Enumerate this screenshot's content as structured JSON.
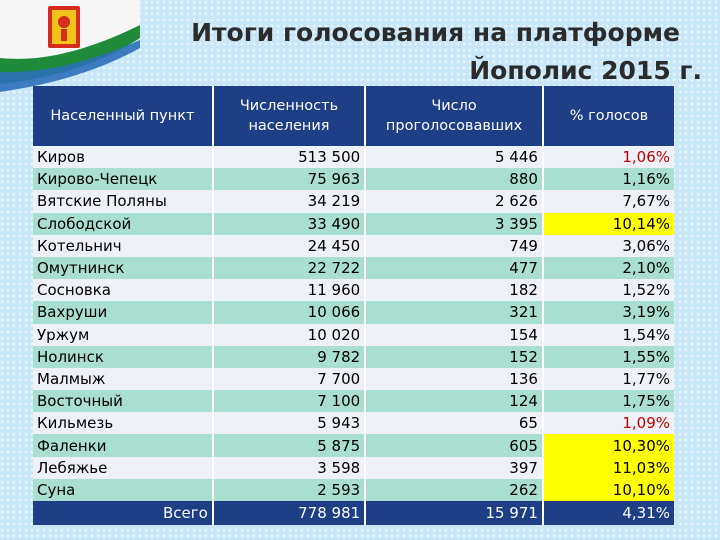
{
  "title_line1": "Итоги голосования на платформе",
  "title_line2": "Йополис 2015 г.",
  "columns": [
    "Населенный пункт",
    "Численность населения",
    "Число проголосовавших",
    "% голосов"
  ],
  "rows": [
    {
      "city": "Киров",
      "population": "513 500",
      "voters": "5 446",
      "percent": "1,06%",
      "highlight": "red"
    },
    {
      "city": "Кирово-Чепецк",
      "population": "75 963",
      "voters": "880",
      "percent": "1,16%",
      "highlight": ""
    },
    {
      "city": "Вятские Поляны",
      "population": "34 219",
      "voters": "2 626",
      "percent": "7,67%",
      "highlight": ""
    },
    {
      "city": "Слободской",
      "population": "33 490",
      "voters": "3 395",
      "percent": "10,14%",
      "highlight": "yellow"
    },
    {
      "city": "Котельнич",
      "population": "24 450",
      "voters": "749",
      "percent": "3,06%",
      "highlight": ""
    },
    {
      "city": "Омутнинск",
      "population": "22 722",
      "voters": "477",
      "percent": "2,10%",
      "highlight": ""
    },
    {
      "city": "Сосновка",
      "population": "11 960",
      "voters": "182",
      "percent": "1,52%",
      "highlight": ""
    },
    {
      "city": "Вахруши",
      "population": "10 066",
      "voters": "321",
      "percent": "3,19%",
      "highlight": ""
    },
    {
      "city": "Уржум",
      "population": "10 020",
      "voters": "154",
      "percent": "1,54%",
      "highlight": ""
    },
    {
      "city": "Нолинск",
      "population": "9 782",
      "voters": "152",
      "percent": "1,55%",
      "highlight": ""
    },
    {
      "city": "Малмыж",
      "population": "7 700",
      "voters": "136",
      "percent": "1,77%",
      "highlight": ""
    },
    {
      "city": "Восточный",
      "population": "7 100",
      "voters": "124",
      "percent": "1,75%",
      "highlight": ""
    },
    {
      "city": "Кильмезь",
      "population": "5 943",
      "voters": "65",
      "percent": "1,09%",
      "highlight": "red"
    },
    {
      "city": "Фаленки",
      "population": "5 875",
      "voters": "605",
      "percent": "10,30%",
      "highlight": "yellow"
    },
    {
      "city": "Лебяжье",
      "population": "3 598",
      "voters": "397",
      "percent": "11,03%",
      "highlight": "yellow"
    },
    {
      "city": "Суна",
      "population": "2 593",
      "voters": "262",
      "percent": "10,10%",
      "highlight": "yellow"
    }
  ],
  "total": {
    "label": "Всего",
    "population": "778 981",
    "voters": "15 971",
    "percent": "4,31%"
  },
  "colors": {
    "header": "#1d3f86",
    "row_light": "#eef2f8",
    "row_teal": "#a9dfd0",
    "highlight_yellow": "#ffff00",
    "text_red": "#c00000"
  }
}
